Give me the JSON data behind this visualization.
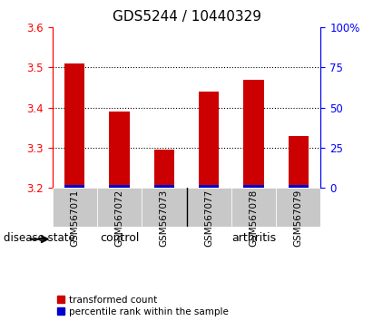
{
  "title": "GDS5244 / 10440329",
  "samples": [
    "GSM567071",
    "GSM567072",
    "GSM567073",
    "GSM567077",
    "GSM567078",
    "GSM567079"
  ],
  "red_values": [
    3.51,
    3.39,
    3.295,
    3.44,
    3.47,
    3.33
  ],
  "blue_heights": [
    0.008,
    0.008,
    0.008,
    0.008,
    0.008,
    0.008
  ],
  "ylim": [
    3.2,
    3.6
  ],
  "y_left_ticks": [
    3.2,
    3.3,
    3.4,
    3.5,
    3.6
  ],
  "y_right_ticks": [
    0,
    25,
    50,
    75,
    100
  ],
  "control_color": "#90EE90",
  "arthritis_color": "#4CBB4C",
  "bar_bg_color": "#C8C8C8",
  "red_bar_color": "#CC0000",
  "blue_bar_color": "#0000CC",
  "legend_red_label": "transformed count",
  "legend_blue_label": "percentile rank within the sample",
  "disease_state_label": "disease state",
  "control_label": "control",
  "arthritis_label": "arthritis",
  "title_fontsize": 11,
  "tick_fontsize": 8.5,
  "bar_width": 0.45,
  "n_control": 3,
  "n_arthritis": 3
}
